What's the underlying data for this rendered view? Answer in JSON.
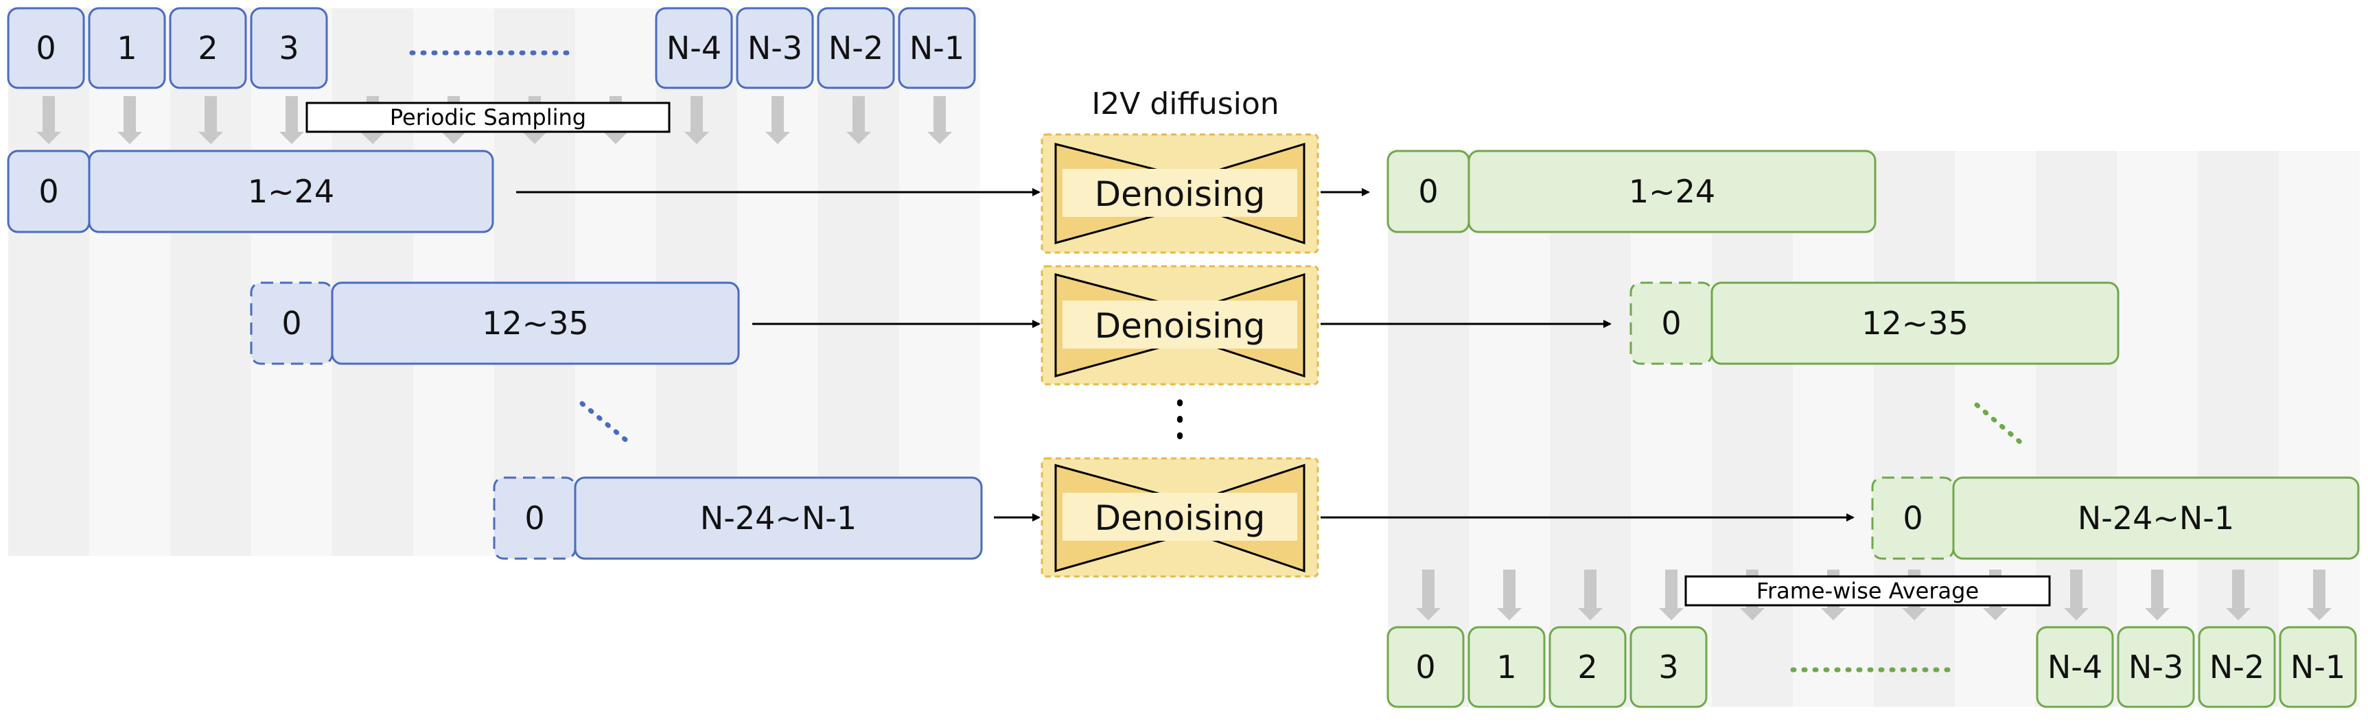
{
  "title": "I2V diffusion",
  "input_frames": [
    "0",
    "1",
    "2",
    "3",
    "N-4",
    "N-3",
    "N-2",
    "N-1"
  ],
  "output_frames": [
    "0",
    "1",
    "2",
    "3",
    "N-4",
    "N-3",
    "N-2",
    "N-1"
  ],
  "top_label": "Periodic Sampling",
  "bottom_label": "Frame-wise Average",
  "clips": [
    {
      "first": "0",
      "range": "1~24"
    },
    {
      "first": "0",
      "range": "12~35"
    },
    {
      "first": "0",
      "range": "N-24~N-1"
    }
  ],
  "denoise_label": "Denoising",
  "colors": {
    "blue_fill": "#dbe2f3",
    "blue_stroke": "#4a6bc0",
    "green_fill": "#e2f0d8",
    "green_stroke": "#70a84a",
    "denoise_fill": "#f8e6a8",
    "denoise_inner": "#fcf0c6",
    "denoise_shape": "#f2d27c",
    "band": "#ededed",
    "arrow_gray": "#c8c8c8"
  }
}
